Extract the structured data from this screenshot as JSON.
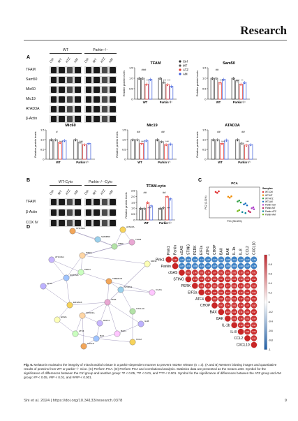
{
  "header": {
    "title": "Research"
  },
  "panel_letters": [
    "A",
    "B",
    "C",
    "D"
  ],
  "panel_a": {
    "group_labels": [
      "WT",
      "Parkin⁻/⁻"
    ],
    "lanes": [
      "Ctrl",
      "MT",
      "ATZ",
      "AM",
      "Ctrl",
      "MT",
      "ATZ",
      "AM"
    ],
    "rows": [
      "TFAM",
      "Sam50",
      "Mic60",
      "Mic19",
      "ATAD3A",
      "β-Actin"
    ]
  },
  "panel_b": {
    "group_labels": [
      "WT-Cyto",
      "Parkin⁻/⁻-Cyto"
    ],
    "lanes": [
      "Ctrl",
      "MT",
      "ATZ",
      "AM",
      "Ctrl",
      "MT",
      "ATZ",
      "AM"
    ],
    "rows": [
      "TFAM",
      "β-Actin",
      "COX IV"
    ]
  },
  "legend": {
    "items": [
      "Ctrl",
      "MT",
      "ATZ",
      "AM"
    ],
    "colors": [
      "#2b2b2b",
      "#555555",
      "#e3342f",
      "#3b5bdb"
    ]
  },
  "chart_data": [
    {
      "type": "bar",
      "title": "TFAM",
      "ylabel": "Relative protein levels",
      "ylim": [
        0,
        1.5
      ],
      "yticks": [
        "0",
        "0.5",
        "1.0",
        "1.5"
      ],
      "categories": [
        "WT",
        "Parkin⁻/⁻"
      ],
      "series": [
        {
          "name": "Ctrl",
          "values": [
            1.0,
            1.0
          ]
        },
        {
          "name": "MT",
          "values": [
            1.0,
            0.82
          ]
        },
        {
          "name": "ATZ",
          "values": [
            0.72,
            0.7
          ]
        },
        {
          "name": "AM",
          "values": [
            0.95,
            0.62
          ]
        }
      ],
      "annotations": [
        "###",
        "***",
        "***",
        "***"
      ]
    },
    {
      "type": "bar",
      "title": "Sam50",
      "ylabel": "Relative protein levels",
      "ylim": [
        0,
        1.5
      ],
      "yticks": [
        "0",
        "0.5",
        "1.0",
        "1.5"
      ],
      "categories": [
        "WT",
        "Parkin⁻/⁻"
      ],
      "series": [
        {
          "name": "Ctrl",
          "values": [
            1.0,
            1.0
          ]
        },
        {
          "name": "MT",
          "values": [
            1.0,
            0.88
          ]
        },
        {
          "name": "ATZ",
          "values": [
            0.78,
            0.72
          ]
        },
        {
          "name": "AM",
          "values": [
            0.95,
            0.8
          ]
        }
      ],
      "annotations": [
        "##",
        "***",
        "***",
        "**"
      ]
    },
    {
      "type": "bar",
      "title": "Mic60",
      "ylabel": "Relative protein levels",
      "ylim": [
        0,
        1.5
      ],
      "yticks": [
        "0",
        "0.5",
        "1.0",
        "1.5"
      ],
      "categories": [
        "WT",
        "Parkin⁻/⁻"
      ],
      "series": [
        {
          "name": "Ctrl",
          "values": [
            1.0,
            1.0
          ]
        },
        {
          "name": "MT",
          "values": [
            1.0,
            0.88
          ]
        },
        {
          "name": "ATZ",
          "values": [
            0.86,
            0.75
          ]
        },
        {
          "name": "AM",
          "values": [
            0.96,
            0.8
          ]
        }
      ],
      "annotations": [
        "#",
        "***",
        "***"
      ]
    },
    {
      "type": "bar",
      "title": "Mic19",
      "ylabel": "Relative protein levels",
      "ylim": [
        0,
        1.5
      ],
      "yticks": [
        "0",
        "0.5",
        "1.0",
        "1.5"
      ],
      "categories": [
        "WT",
        "Parkin⁻/⁻"
      ],
      "series": [
        {
          "name": "Ctrl",
          "values": [
            1.0,
            1.0
          ]
        },
        {
          "name": "MT",
          "values": [
            1.0,
            0.9
          ]
        },
        {
          "name": "ATZ",
          "values": [
            0.8,
            0.75
          ]
        },
        {
          "name": "AM",
          "values": [
            0.96,
            0.78
          ]
        }
      ],
      "annotations": [
        "##",
        "***",
        "##",
        "***"
      ]
    },
    {
      "type": "bar",
      "title": "ATAD3A",
      "ylabel": "Relative protein levels",
      "ylim": [
        0,
        1.5
      ],
      "yticks": [
        "0",
        "0.5",
        "1.0",
        "1.5"
      ],
      "categories": [
        "WT",
        "Parkin⁻/⁻"
      ],
      "series": [
        {
          "name": "Ctrl",
          "values": [
            1.0,
            1.0
          ]
        },
        {
          "name": "MT",
          "values": [
            1.0,
            0.82
          ]
        },
        {
          "name": "ATZ",
          "values": [
            0.8,
            0.72
          ]
        },
        {
          "name": "AM",
          "values": [
            0.98,
            0.75
          ]
        }
      ],
      "annotations": [
        "##",
        "***",
        "##",
        "***"
      ]
    },
    {
      "type": "bar",
      "title": "TFAM-cyto",
      "ylabel": "Relative protein levels",
      "ylim": [
        0,
        2.5
      ],
      "yticks": [
        "0",
        "0.5",
        "1.0",
        "1.5",
        "2.0",
        "2.5"
      ],
      "categories": [
        "WT",
        "Parkin⁻/⁻"
      ],
      "series": [
        {
          "name": "Ctrl",
          "values": [
            1.0,
            1.0
          ]
        },
        {
          "name": "MT",
          "values": [
            1.0,
            1.05
          ]
        },
        {
          "name": "ATZ",
          "values": [
            1.5,
            2.0
          ]
        },
        {
          "name": "AM",
          "values": [
            1.2,
            1.8
          ]
        }
      ],
      "annotations": [
        "##",
        "***",
        "##",
        "***"
      ]
    },
    {
      "type": "scatter",
      "title": "PCA",
      "xlabel": "PC1 (96.60%)",
      "ylabel": "PC2 (2.31%)",
      "legend_title": "Samples",
      "legend_items": [
        "WT-Ctrl",
        "WT-MT",
        "WT-ATZ",
        "WT-AM",
        "Parkin-Ctrl",
        "Parkin-MT",
        "Parkin-ATZ",
        "Parkin-AM"
      ],
      "colors": [
        "#e03131",
        "#f08c00",
        "#2f9e44",
        "#1971c2",
        "#ae3ec9",
        "#c2255c",
        "#0c8599",
        "#74b816"
      ],
      "points": [
        [
          -0.6,
          0.55,
          0
        ],
        [
          -0.55,
          0.5,
          0
        ],
        [
          -0.5,
          0.58,
          0
        ],
        [
          -0.2,
          0.3,
          1
        ],
        [
          -0.15,
          0.25,
          1
        ],
        [
          -0.1,
          0.32,
          1
        ],
        [
          0.1,
          0.05,
          2
        ],
        [
          0.15,
          0.1,
          2
        ],
        [
          0.2,
          0.0,
          2
        ],
        [
          0.3,
          -0.1,
          3
        ],
        [
          0.35,
          -0.05,
          3
        ],
        [
          0.4,
          -0.15,
          3
        ],
        [
          0.55,
          -0.3,
          4
        ],
        [
          0.6,
          -0.25,
          4
        ],
        [
          0.62,
          -0.35,
          4
        ],
        [
          0.45,
          -0.45,
          5
        ],
        [
          0.5,
          -0.5,
          5
        ],
        [
          0.35,
          -0.55,
          6
        ],
        [
          0.25,
          -0.5,
          6
        ],
        [
          0.1,
          -0.45,
          7
        ],
        [
          0.15,
          -0.4,
          7
        ]
      ]
    },
    {
      "type": "heatmap",
      "labels": [
        "Pink1",
        "Parkin",
        "cGAS",
        "STING",
        "PERK",
        "EIF2a",
        "ATF4",
        "CHOP",
        "BAX",
        "BAK",
        "IL-1b",
        "IL-8",
        "CCL2",
        "CXCL10"
      ],
      "scale_ticks": [
        "1",
        "0.8",
        "0.6",
        "0.4",
        "0.2",
        "0",
        "-0.2",
        "-0.4",
        "-0.6",
        "-0.8",
        "-1"
      ],
      "colorbar_range": [
        -1,
        1
      ]
    }
  ],
  "network": {
    "nodes": [
      "CHCHD3",
      "ATAD3A",
      "SAMM50",
      "IMMT",
      "TFAM",
      "ATG16L1",
      "PINK1",
      "MFN2",
      "PRKN",
      "SQSTM1",
      "CGAS",
      "ATG5",
      "TMEM173",
      "EIF2AK3",
      "STING1",
      "CXCL10",
      "TP53",
      "DDIT3",
      "CDKN1A",
      "EIF2A",
      "ATF4",
      "BAX",
      "BAK1",
      "IL1B",
      "CXCL8",
      "CCL2"
    ],
    "colors": [
      "#f2a65a",
      "#f7d35b",
      "#9ad0ec",
      "#b4e3a8",
      "#e9a7d3",
      "#c8b6ff",
      "#ffd6a5",
      "#fdffb6",
      "#caffbf",
      "#a0c4ff",
      "#ffc6ff",
      "#bdb2ff"
    ]
  },
  "caption": {
    "lead": "Fig. 6.",
    "text": "Melatonin maintains the integrity of mitochondrial cristae in a parkin-dependent manner to prevent mtDNA release (n = 3). (A and B) Western blotting images and quantitative results of proteins from WT or parkin⁻/⁻ mice. (C) Perform PCA. (D) Perform PCA and correlational analysis. Statistics data are presented as the means ±SD. Symbol for the significance of differences between the Ctrl group and another group: *P < 0.05, **P < 0.01, and ***P < 0.001. Symbol for the significance of differences between the ATZ group and AM group: #P < 0.05, ##P < 0.01, and ###P < 0.001."
  },
  "footer": {
    "citation": "Shi et al. 2024 | https://doi.org/10.34133/research.0378",
    "page": "9"
  }
}
